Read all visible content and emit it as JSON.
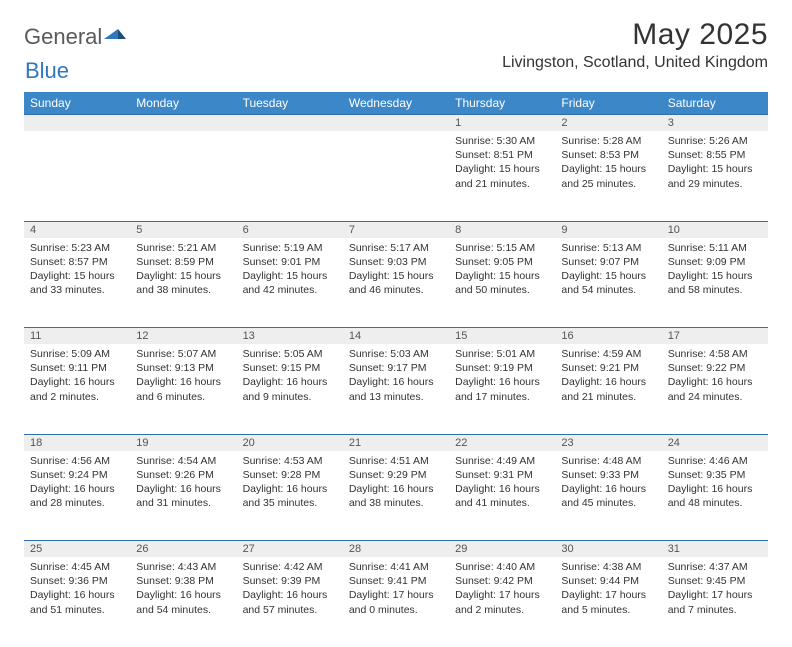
{
  "brand": {
    "part1": "General",
    "part2": "Blue"
  },
  "title": "May 2025",
  "location": "Livingston, Scotland, United Kingdom",
  "colors": {
    "header_bg": "#3c87c7",
    "header_text": "#ffffff",
    "rule": "#2f6faa",
    "daynum_bg": "#eeeeee",
    "brand_gray": "#5a5a5a",
    "brand_blue": "#2f78bd"
  },
  "weekdays": [
    "Sunday",
    "Monday",
    "Tuesday",
    "Wednesday",
    "Thursday",
    "Friday",
    "Saturday"
  ],
  "weeks": [
    [
      null,
      null,
      null,
      null,
      {
        "n": "1",
        "sr": "Sunrise: 5:30 AM",
        "ss": "Sunset: 8:51 PM",
        "dl": "Daylight: 15 hours and 21 minutes."
      },
      {
        "n": "2",
        "sr": "Sunrise: 5:28 AM",
        "ss": "Sunset: 8:53 PM",
        "dl": "Daylight: 15 hours and 25 minutes."
      },
      {
        "n": "3",
        "sr": "Sunrise: 5:26 AM",
        "ss": "Sunset: 8:55 PM",
        "dl": "Daylight: 15 hours and 29 minutes."
      }
    ],
    [
      {
        "n": "4",
        "sr": "Sunrise: 5:23 AM",
        "ss": "Sunset: 8:57 PM",
        "dl": "Daylight: 15 hours and 33 minutes."
      },
      {
        "n": "5",
        "sr": "Sunrise: 5:21 AM",
        "ss": "Sunset: 8:59 PM",
        "dl": "Daylight: 15 hours and 38 minutes."
      },
      {
        "n": "6",
        "sr": "Sunrise: 5:19 AM",
        "ss": "Sunset: 9:01 PM",
        "dl": "Daylight: 15 hours and 42 minutes."
      },
      {
        "n": "7",
        "sr": "Sunrise: 5:17 AM",
        "ss": "Sunset: 9:03 PM",
        "dl": "Daylight: 15 hours and 46 minutes."
      },
      {
        "n": "8",
        "sr": "Sunrise: 5:15 AM",
        "ss": "Sunset: 9:05 PM",
        "dl": "Daylight: 15 hours and 50 minutes."
      },
      {
        "n": "9",
        "sr": "Sunrise: 5:13 AM",
        "ss": "Sunset: 9:07 PM",
        "dl": "Daylight: 15 hours and 54 minutes."
      },
      {
        "n": "10",
        "sr": "Sunrise: 5:11 AM",
        "ss": "Sunset: 9:09 PM",
        "dl": "Daylight: 15 hours and 58 minutes."
      }
    ],
    [
      {
        "n": "11",
        "sr": "Sunrise: 5:09 AM",
        "ss": "Sunset: 9:11 PM",
        "dl": "Daylight: 16 hours and 2 minutes."
      },
      {
        "n": "12",
        "sr": "Sunrise: 5:07 AM",
        "ss": "Sunset: 9:13 PM",
        "dl": "Daylight: 16 hours and 6 minutes."
      },
      {
        "n": "13",
        "sr": "Sunrise: 5:05 AM",
        "ss": "Sunset: 9:15 PM",
        "dl": "Daylight: 16 hours and 9 minutes."
      },
      {
        "n": "14",
        "sr": "Sunrise: 5:03 AM",
        "ss": "Sunset: 9:17 PM",
        "dl": "Daylight: 16 hours and 13 minutes."
      },
      {
        "n": "15",
        "sr": "Sunrise: 5:01 AM",
        "ss": "Sunset: 9:19 PM",
        "dl": "Daylight: 16 hours and 17 minutes."
      },
      {
        "n": "16",
        "sr": "Sunrise: 4:59 AM",
        "ss": "Sunset: 9:21 PM",
        "dl": "Daylight: 16 hours and 21 minutes."
      },
      {
        "n": "17",
        "sr": "Sunrise: 4:58 AM",
        "ss": "Sunset: 9:22 PM",
        "dl": "Daylight: 16 hours and 24 minutes."
      }
    ],
    [
      {
        "n": "18",
        "sr": "Sunrise: 4:56 AM",
        "ss": "Sunset: 9:24 PM",
        "dl": "Daylight: 16 hours and 28 minutes."
      },
      {
        "n": "19",
        "sr": "Sunrise: 4:54 AM",
        "ss": "Sunset: 9:26 PM",
        "dl": "Daylight: 16 hours and 31 minutes."
      },
      {
        "n": "20",
        "sr": "Sunrise: 4:53 AM",
        "ss": "Sunset: 9:28 PM",
        "dl": "Daylight: 16 hours and 35 minutes."
      },
      {
        "n": "21",
        "sr": "Sunrise: 4:51 AM",
        "ss": "Sunset: 9:29 PM",
        "dl": "Daylight: 16 hours and 38 minutes."
      },
      {
        "n": "22",
        "sr": "Sunrise: 4:49 AM",
        "ss": "Sunset: 9:31 PM",
        "dl": "Daylight: 16 hours and 41 minutes."
      },
      {
        "n": "23",
        "sr": "Sunrise: 4:48 AM",
        "ss": "Sunset: 9:33 PM",
        "dl": "Daylight: 16 hours and 45 minutes."
      },
      {
        "n": "24",
        "sr": "Sunrise: 4:46 AM",
        "ss": "Sunset: 9:35 PM",
        "dl": "Daylight: 16 hours and 48 minutes."
      }
    ],
    [
      {
        "n": "25",
        "sr": "Sunrise: 4:45 AM",
        "ss": "Sunset: 9:36 PM",
        "dl": "Daylight: 16 hours and 51 minutes."
      },
      {
        "n": "26",
        "sr": "Sunrise: 4:43 AM",
        "ss": "Sunset: 9:38 PM",
        "dl": "Daylight: 16 hours and 54 minutes."
      },
      {
        "n": "27",
        "sr": "Sunrise: 4:42 AM",
        "ss": "Sunset: 9:39 PM",
        "dl": "Daylight: 16 hours and 57 minutes."
      },
      {
        "n": "28",
        "sr": "Sunrise: 4:41 AM",
        "ss": "Sunset: 9:41 PM",
        "dl": "Daylight: 17 hours and 0 minutes."
      },
      {
        "n": "29",
        "sr": "Sunrise: 4:40 AM",
        "ss": "Sunset: 9:42 PM",
        "dl": "Daylight: 17 hours and 2 minutes."
      },
      {
        "n": "30",
        "sr": "Sunrise: 4:38 AM",
        "ss": "Sunset: 9:44 PM",
        "dl": "Daylight: 17 hours and 5 minutes."
      },
      {
        "n": "31",
        "sr": "Sunrise: 4:37 AM",
        "ss": "Sunset: 9:45 PM",
        "dl": "Daylight: 17 hours and 7 minutes."
      }
    ]
  ]
}
